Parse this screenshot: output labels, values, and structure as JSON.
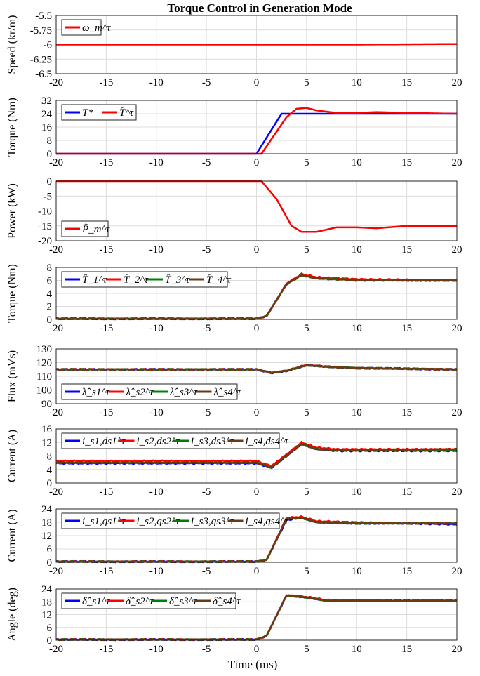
{
  "figure": {
    "title": "Torque Control in Generation Mode",
    "xlabel": "Time (ms)"
  },
  "chart_data": [
    {
      "type": "line",
      "ylabel": "Speed (kr/m)",
      "xlim": [
        -20,
        20
      ],
      "ylim": [
        -6.5,
        -5.5
      ],
      "yticks": [
        "-5.5",
        "-5.75",
        "-6",
        "-6.25",
        "-6.5"
      ],
      "ytick_values": [
        -5.5,
        -5.75,
        -6,
        -6.25,
        -6.5
      ],
      "xticks": [
        "-20",
        "-15",
        "-10",
        "-5",
        "0",
        "5",
        "10",
        "15",
        "20"
      ],
      "grid": true,
      "legend": "top-left",
      "series": [
        {
          "name": "ω_m^τ",
          "color": "#ff0000",
          "x": [
            -20,
            -10,
            0,
            10,
            20
          ],
          "y": [
            -6.0,
            -6.0,
            -6.0,
            -6.0,
            -5.99
          ]
        }
      ]
    },
    {
      "type": "line",
      "ylabel": "Torque (Nm)",
      "xlim": [
        -20,
        20
      ],
      "ylim": [
        0,
        32
      ],
      "yticks": [
        "32",
        "24",
        "16",
        "8",
        "0"
      ],
      "ytick_values": [
        32,
        24,
        16,
        8,
        0
      ],
      "xticks": [
        "-20",
        "-15",
        "-10",
        "-5",
        "0",
        "5",
        "10",
        "15",
        "20"
      ],
      "grid": true,
      "legend": "top-left",
      "series": [
        {
          "name": "T*",
          "color": "#0000ff",
          "x": [
            -20,
            0,
            2.5,
            20
          ],
          "y": [
            0,
            0,
            24,
            24
          ]
        },
        {
          "name": "T̂^τ",
          "color": "#ff0000",
          "x": [
            -20,
            0.5,
            3,
            4,
            5,
            6,
            8,
            10,
            12,
            15,
            20
          ],
          "y": [
            0,
            0,
            22,
            27,
            27.5,
            26,
            24.5,
            24.5,
            25,
            24.5,
            24
          ]
        }
      ]
    },
    {
      "type": "line",
      "ylabel": "Power (kW)",
      "xlim": [
        -20,
        20
      ],
      "ylim": [
        -20,
        0
      ],
      "yticks": [
        "0",
        "-5",
        "-10",
        "-15",
        "-20"
      ],
      "ytick_values": [
        0,
        -5,
        -10,
        -15,
        -20
      ],
      "xticks": [
        "-20",
        "-15",
        "-10",
        "-5",
        "0",
        "5",
        "10",
        "15",
        "20"
      ],
      "grid": true,
      "legend": "bottom-left",
      "series": [
        {
          "name": "P̃_m^τ",
          "color": "#ff0000",
          "x": [
            -20,
            -10,
            0,
            0.5,
            2,
            3.5,
            4.5,
            6,
            8,
            10,
            12,
            15,
            20
          ],
          "y": [
            0,
            0,
            0,
            0,
            -6,
            -15,
            -17,
            -17,
            -15.5,
            -15.5,
            -15.8,
            -15,
            -15
          ]
        }
      ]
    },
    {
      "type": "line",
      "ylabel": "Torque (Nm)",
      "xlim": [
        -20,
        20
      ],
      "ylim": [
        0,
        8
      ],
      "yticks": [
        "8",
        "6",
        "4",
        "2",
        "0"
      ],
      "ytick_values": [
        8,
        6,
        4,
        2,
        0
      ],
      "xticks": [
        "-20",
        "-15",
        "-10",
        "-5",
        "0",
        "5",
        "10",
        "15",
        "20"
      ],
      "grid": true,
      "legend": "top-left",
      "series": [
        {
          "name": "T̂_1^τ",
          "color": "#0000ff",
          "x": [
            -20,
            0,
            1,
            3,
            4.5,
            6,
            10,
            15,
            20
          ],
          "y": [
            0.1,
            0.1,
            0.5,
            5.5,
            6.9,
            6.4,
            6.1,
            6.0,
            6.0
          ]
        },
        {
          "name": "T̂_2^τ",
          "color": "#ff0000",
          "x": [
            -20,
            0,
            1,
            3,
            4.5,
            6,
            10,
            15,
            20
          ],
          "y": [
            0.1,
            0.1,
            0.5,
            5.5,
            7.0,
            6.5,
            6.2,
            6.1,
            6.0
          ]
        },
        {
          "name": "T̂_3^τ",
          "color": "#008000",
          "x": [
            -20,
            0,
            1,
            3,
            4.5,
            6,
            10,
            15,
            20
          ],
          "y": [
            0.1,
            0.1,
            0.5,
            5.4,
            6.8,
            6.3,
            6.1,
            6.0,
            6.0
          ]
        },
        {
          "name": "T̂_4^τ",
          "color": "#6b3a12",
          "x": [
            -20,
            0,
            1,
            3,
            4.5,
            6,
            10,
            15,
            20
          ],
          "y": [
            0.1,
            0.1,
            0.5,
            5.4,
            6.8,
            6.3,
            6.0,
            6.0,
            6.0
          ]
        }
      ]
    },
    {
      "type": "line",
      "ylabel": "Flux (mVs)",
      "xlim": [
        -20,
        20
      ],
      "ylim": [
        90,
        130
      ],
      "yticks": [
        "130",
        "120",
        "110",
        "100",
        "90"
      ],
      "ytick_values": [
        130,
        120,
        110,
        100,
        90
      ],
      "xticks": [
        "-20",
        "-15",
        "-10",
        "-5",
        "0",
        "5",
        "10",
        "15",
        "20"
      ],
      "grid": true,
      "legend": "bottom-left",
      "series": [
        {
          "name": "λ̂_s1^τ",
          "color": "#0000ff",
          "x": [
            -20,
            0,
            1.5,
            3,
            5,
            7,
            10,
            15,
            20
          ],
          "y": [
            115,
            115,
            112.5,
            114,
            118,
            117,
            116,
            115.5,
            115
          ]
        },
        {
          "name": "λ̂_s2^τ",
          "color": "#ff0000",
          "x": [
            -20,
            0,
            1.5,
            3,
            5,
            7,
            10,
            15,
            20
          ],
          "y": [
            115,
            115,
            112.5,
            114,
            118.5,
            117,
            116,
            115.5,
            115
          ]
        },
        {
          "name": "λ̂_s3^τ",
          "color": "#008000",
          "x": [
            -20,
            0,
            1.5,
            3,
            5,
            7,
            10,
            15,
            20
          ],
          "y": [
            115,
            115,
            112.5,
            114,
            118,
            117,
            116,
            115.5,
            115
          ]
        },
        {
          "name": "λ̂_s4^τ",
          "color": "#6b3a12",
          "x": [
            -20,
            0,
            1.5,
            3,
            5,
            7,
            10,
            15,
            20
          ],
          "y": [
            115,
            115,
            112.5,
            114,
            118,
            117,
            116,
            115.5,
            115
          ]
        }
      ]
    },
    {
      "type": "line",
      "ylabel": "Current (A)",
      "xlim": [
        -20,
        20
      ],
      "ylim": [
        0,
        16
      ],
      "yticks": [
        "16",
        "12",
        "8",
        "4",
        "0"
      ],
      "ytick_values": [
        16,
        12,
        8,
        4,
        0
      ],
      "xticks": [
        "-20",
        "-15",
        "-10",
        "-5",
        "0",
        "5",
        "10",
        "15",
        "20"
      ],
      "grid": true,
      "legend": "top-left",
      "series": [
        {
          "name": "i_s1,ds1^τ",
          "color": "#0000ff",
          "x": [
            -20,
            0,
            1.5,
            3,
            4.5,
            6,
            8,
            10,
            15,
            20
          ],
          "y": [
            5.8,
            5.8,
            4.5,
            8,
            11.5,
            10,
            9.5,
            9.5,
            9.5,
            9.5
          ]
        },
        {
          "name": "i_s2,ds2^τ",
          "color": "#ff0000",
          "x": [
            -20,
            0,
            1.5,
            3,
            4.5,
            6,
            8,
            10,
            15,
            20
          ],
          "y": [
            6.5,
            6.5,
            5,
            8.5,
            12,
            10.5,
            10,
            10,
            10,
            10
          ]
        },
        {
          "name": "i_s3,ds3^τ",
          "color": "#008000",
          "x": [
            -20,
            0,
            1.5,
            3,
            4.5,
            6,
            8,
            10,
            15,
            20
          ],
          "y": [
            6,
            6,
            4.5,
            8,
            11.5,
            10,
            9.8,
            9.8,
            9.8,
            9.8
          ]
        },
        {
          "name": "i_s4,ds4^τ",
          "color": "#6b3a12",
          "x": [
            -20,
            0,
            1.5,
            3,
            4.5,
            6,
            8,
            10,
            15,
            20
          ],
          "y": [
            6,
            6,
            4.5,
            8,
            11.5,
            10,
            9.8,
            9.8,
            9.8,
            10
          ]
        }
      ]
    },
    {
      "type": "line",
      "ylabel": "Current (A)",
      "xlim": [
        -20,
        20
      ],
      "ylim": [
        0,
        24
      ],
      "yticks": [
        "24",
        "18",
        "12",
        "6",
        "0"
      ],
      "ytick_values": [
        24,
        18,
        12,
        6,
        0
      ],
      "xticks": [
        "-20",
        "-15",
        "-10",
        "-5",
        "0",
        "5",
        "10",
        "15",
        "20"
      ],
      "grid": true,
      "legend": "top-left",
      "series": [
        {
          "name": "i_s1,qs1^τ",
          "color": "#0000ff",
          "x": [
            -20,
            0,
            1,
            3,
            4.5,
            6,
            10,
            15,
            20
          ],
          "y": [
            0.3,
            0.3,
            1,
            19,
            20,
            18,
            17.5,
            17.5,
            17
          ]
        },
        {
          "name": "i_s2,qs2^τ",
          "color": "#ff0000",
          "x": [
            -20,
            0,
            1,
            3,
            4.5,
            6,
            10,
            15,
            20
          ],
          "y": [
            0.3,
            0.3,
            1,
            20,
            20.5,
            18.5,
            18,
            17.5,
            17.5
          ]
        },
        {
          "name": "i_s3,qs3^τ",
          "color": "#008000",
          "x": [
            -20,
            0,
            1,
            3,
            4.5,
            6,
            10,
            15,
            20
          ],
          "y": [
            0.3,
            0.3,
            1,
            19.5,
            20,
            18,
            17.5,
            17.5,
            17.5
          ]
        },
        {
          "name": "i_s4,qs4^τ",
          "color": "#6b3a12",
          "x": [
            -20,
            0,
            1,
            3,
            4.5,
            6,
            10,
            15,
            20
          ],
          "y": [
            0.3,
            0.3,
            1,
            19.5,
            20,
            18,
            17.5,
            17.5,
            17.5
          ]
        }
      ]
    },
    {
      "type": "line",
      "ylabel": "Angle (deg)",
      "xlim": [
        -20,
        20
      ],
      "ylim": [
        0,
        24
      ],
      "yticks": [
        "24",
        "18",
        "12",
        "6",
        "0"
      ],
      "ytick_values": [
        24,
        18,
        12,
        6,
        0
      ],
      "xticks": [
        "-20",
        "-15",
        "-10",
        "-5",
        "0",
        "5",
        "10",
        "15",
        "20"
      ],
      "grid": true,
      "legend": "top-left",
      "series": [
        {
          "name": "δ̂_s1^τ",
          "color": "#0000ff",
          "x": [
            -20,
            0,
            1,
            3,
            5,
            7,
            10,
            15,
            20
          ],
          "y": [
            0.3,
            0.3,
            2,
            21,
            20,
            18.5,
            18.5,
            18.5,
            18.5
          ]
        },
        {
          "name": "δ̂_s2^τ",
          "color": "#ff0000",
          "x": [
            -20,
            0,
            1,
            3,
            5,
            7,
            10,
            15,
            20
          ],
          "y": [
            0.3,
            0.3,
            2,
            21,
            20.3,
            18.8,
            18.8,
            18.5,
            18.5
          ]
        },
        {
          "name": "δ̂_s3^τ",
          "color": "#008000",
          "x": [
            -20,
            0,
            1,
            3,
            5,
            7,
            10,
            15,
            20
          ],
          "y": [
            0.3,
            0.3,
            2,
            21,
            20,
            18.5,
            18.5,
            18.5,
            18.5
          ]
        },
        {
          "name": "δ̂_s4^τ",
          "color": "#6b3a12",
          "x": [
            -20,
            0,
            1,
            3,
            5,
            7,
            10,
            15,
            20
          ],
          "y": [
            0.3,
            0.3,
            2,
            21,
            20,
            18.5,
            18.5,
            18.5,
            18.5
          ]
        }
      ]
    }
  ]
}
